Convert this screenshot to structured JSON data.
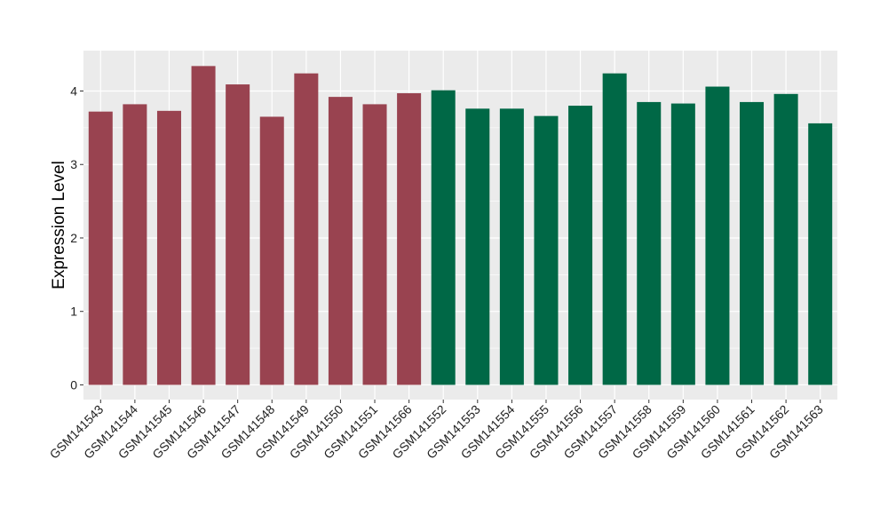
{
  "chart_data": {
    "type": "bar",
    "title": "",
    "xlabel": "",
    "ylabel": "Expression Level",
    "ylim": [
      -0.2,
      4.55
    ],
    "y_ticks": [
      0,
      1,
      2,
      3,
      4
    ],
    "y_tick_labels": [
      "0",
      "1",
      "2",
      "3",
      "4"
    ],
    "grid": true,
    "legend": "none",
    "categories": [
      "GSM141543",
      "GSM141544",
      "GSM141545",
      "GSM141546",
      "GSM141547",
      "GSM141548",
      "GSM141549",
      "GSM141550",
      "GSM141551",
      "GSM141566",
      "GSM141552",
      "GSM141553",
      "GSM141554",
      "GSM141555",
      "GSM141556",
      "GSM141557",
      "GSM141558",
      "GSM141559",
      "GSM141560",
      "GSM141561",
      "GSM141562",
      "GSM141563"
    ],
    "values": [
      3.72,
      3.82,
      3.73,
      4.34,
      4.09,
      3.65,
      4.24,
      3.92,
      3.82,
      3.97,
      4.01,
      3.76,
      3.76,
      3.66,
      3.8,
      4.24,
      3.85,
      3.83,
      4.06,
      3.85,
      3.96,
      3.56
    ],
    "bar_colors": [
      "#994350",
      "#994350",
      "#994350",
      "#994350",
      "#994350",
      "#994350",
      "#994350",
      "#994350",
      "#994350",
      "#994350",
      "#006846",
      "#006846",
      "#006846",
      "#006846",
      "#006846",
      "#006846",
      "#006846",
      "#006846",
      "#006846",
      "#006846",
      "#006846",
      "#006846"
    ],
    "panel_background": "#ebebeb",
    "grid_color": "#ffffff"
  }
}
